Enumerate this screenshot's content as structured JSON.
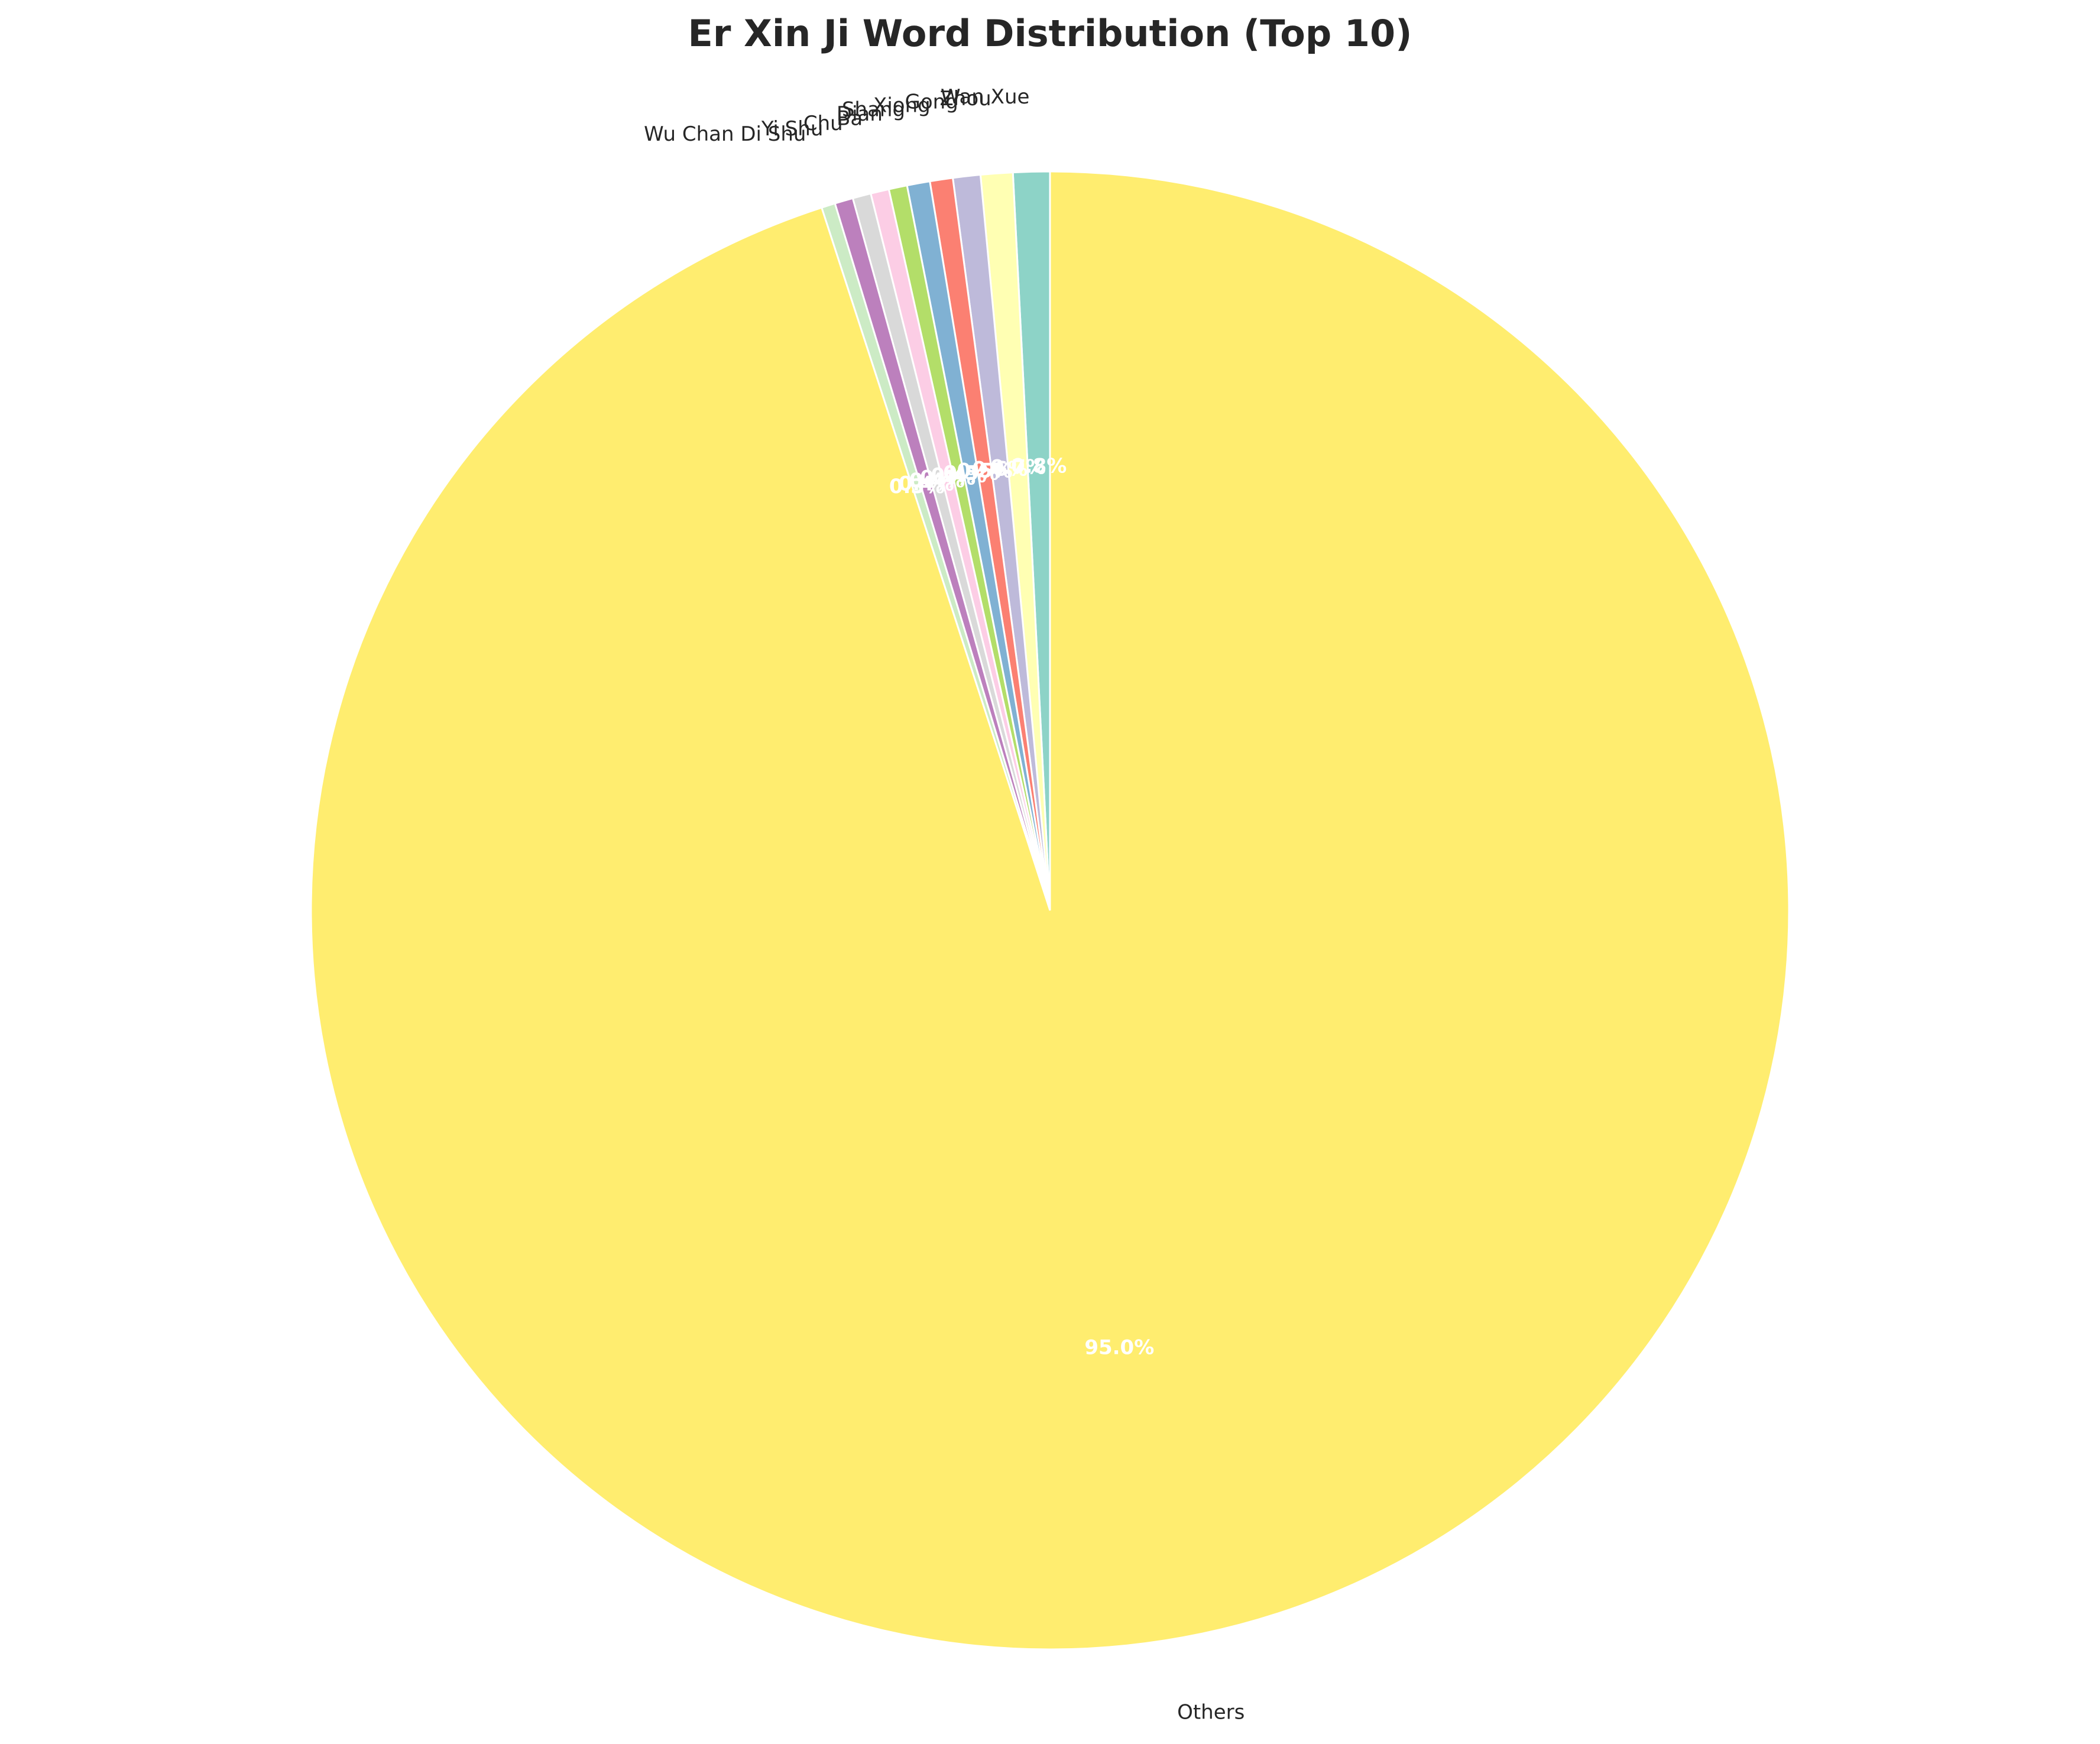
{
  "chart_data": {
    "type": "pie",
    "title": "Er Xin Ji Word Distribution (Top 10)",
    "start_angle_deg": 90,
    "direction": "counterclockwise",
    "slices": [
      {
        "label": "Wan Xue",
        "value": 0.8,
        "pct_text": "0.8%",
        "color": "#8dd3c7"
      },
      {
        "label": "Zhou",
        "value": 0.7,
        "pct_text": "0.7%",
        "color": "#ffffb3"
      },
      {
        "label": "Gong",
        "value": 0.6,
        "pct_text": "0.6%",
        "color": "#bebada"
      },
      {
        "label": "Xiong",
        "value": 0.5,
        "pct_text": "0.5%",
        "color": "#fb8072"
      },
      {
        "label": "Shang",
        "value": 0.5,
        "pct_text": "0.5%",
        "color": "#80b1d3"
      },
      {
        "label": "Dian",
        "value": 0.4,
        "pct_text": "0.4%",
        "color": "#b3de69"
      },
      {
        "label": "Ba",
        "value": 0.4,
        "pct_text": "0.4%",
        "color": "#fccde5"
      },
      {
        "label": "Chu",
        "value": 0.4,
        "pct_text": "0.4%",
        "color": "#d9d9d9"
      },
      {
        "label": "Yi Shu",
        "value": 0.4,
        "pct_text": "0.4%",
        "color": "#bc80bd"
      },
      {
        "label": "Wu Chan Di Shu",
        "value": 0.3,
        "pct_text": "0.3%",
        "color": "#ccebc5"
      },
      {
        "label": "Others",
        "value": 95.0,
        "pct_text": "95.0%",
        "color": "#ffed6f"
      }
    ]
  }
}
